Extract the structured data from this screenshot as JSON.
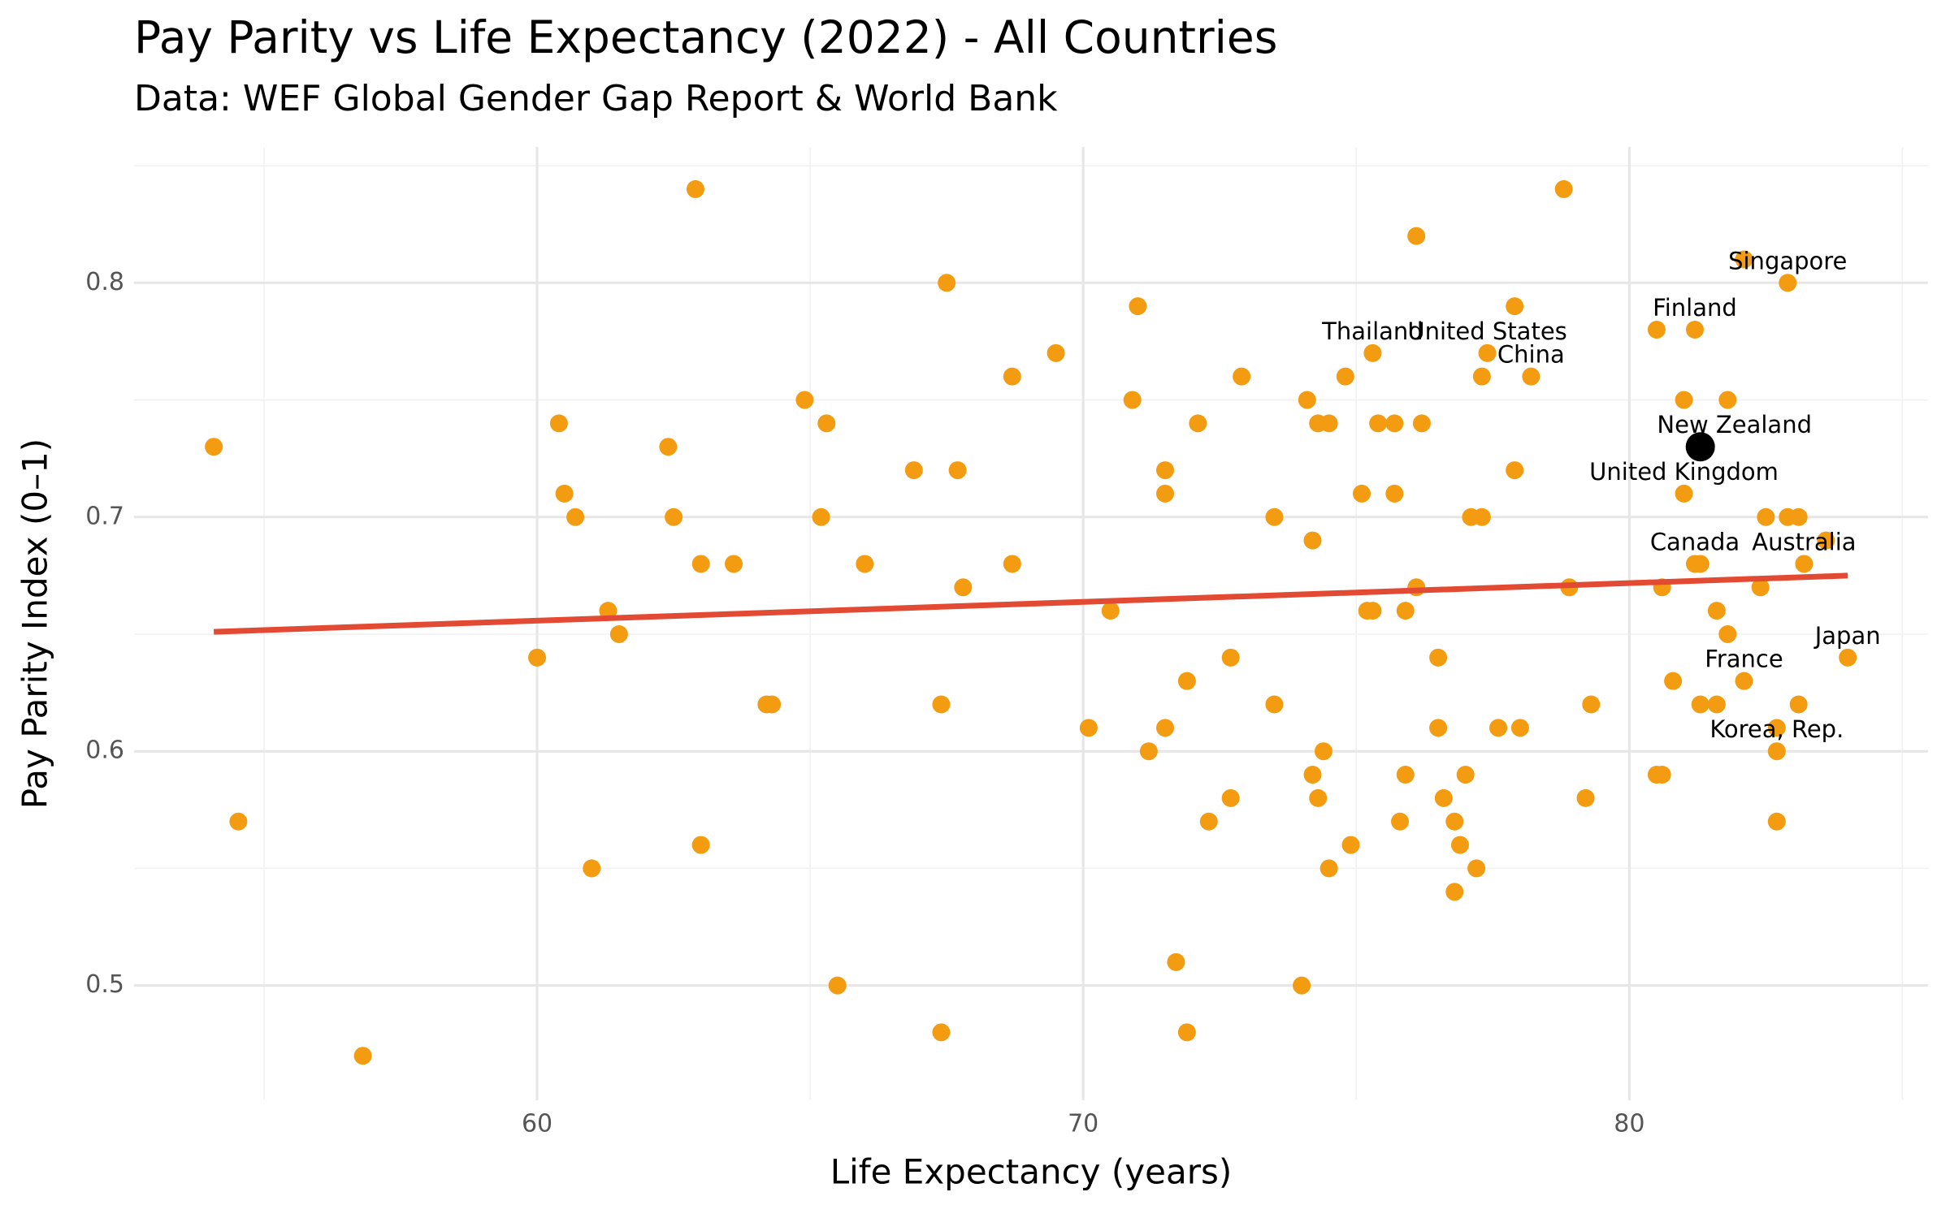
{
  "chart_data": {
    "type": "scatter",
    "title": "Pay Parity vs Life Expectancy (2022) - All Countries",
    "subtitle": "Data: WEF Global Gender Gap Report & World Bank",
    "x_label": "Life Expectancy (years)",
    "y_label": "Pay Parity Index (0–1)",
    "xlim": [
      52.62,
      85.47
    ],
    "ylim": [
      0.451,
      0.858
    ],
    "xticks": [
      60,
      70,
      80
    ],
    "yticks": [
      0.5,
      0.6,
      0.7,
      0.8
    ],
    "xminor": [
      55,
      65,
      75,
      85
    ],
    "yminor": [
      0.55,
      0.65,
      0.75,
      0.85
    ],
    "grid": true,
    "series": [
      {
        "color": "#f39c12",
        "x": [
          54.08,
          54.53,
          56.81,
          60.0,
          60.4,
          60.5,
          60.7,
          61.3,
          61.0,
          61.5,
          62.4,
          62.5,
          62.9,
          63.0,
          63.0,
          63.6,
          64.2,
          64.3,
          64.9,
          65.2,
          65.3,
          65.5,
          66.0,
          66.9,
          67.4,
          67.4,
          67.5,
          67.7,
          67.8,
          68.7,
          68.7,
          69.5,
          70.1,
          70.5,
          70.9,
          71.0,
          71.2,
          71.5,
          71.5,
          71.5,
          71.7,
          71.9,
          71.9,
          72.1,
          72.3,
          72.7,
          72.7,
          72.9,
          73.5,
          73.5,
          74.0,
          74.1,
          74.2,
          74.2,
          74.3,
          74.3,
          74.4,
          74.5,
          74.5,
          74.8,
          74.9,
          75.1,
          75.2,
          75.3,
          75.3,
          75.4,
          75.7,
          75.7,
          75.8,
          75.9,
          75.9,
          76.1,
          76.1,
          76.2,
          76.5,
          76.5,
          76.6,
          76.8,
          76.8,
          76.9,
          77.0,
          77.1,
          77.2,
          77.3,
          77.3,
          77.4,
          77.6,
          77.9,
          77.9,
          78.0,
          78.2,
          78.8,
          78.9,
          79.2,
          79.3,
          80.5,
          80.5,
          80.6,
          80.6,
          80.8,
          81.0,
          81.0,
          81.2,
          81.3,
          81.2,
          81.3,
          81.3,
          81.6,
          81.6,
          81.8,
          81.8,
          82.1,
          82.1,
          82.4,
          82.5,
          82.7,
          82.7,
          82.7,
          82.9,
          82.9,
          83.1,
          83.1,
          83.2,
          83.6,
          84.0
        ],
        "values": [
          0.73,
          0.57,
          0.47,
          0.64,
          0.74,
          0.71,
          0.7,
          0.66,
          0.55,
          0.65,
          0.73,
          0.7,
          0.84,
          0.68,
          0.56,
          0.68,
          0.62,
          0.62,
          0.75,
          0.7,
          0.74,
          0.5,
          0.68,
          0.72,
          0.62,
          0.48,
          0.8,
          0.72,
          0.67,
          0.76,
          0.68,
          0.77,
          0.61,
          0.66,
          0.75,
          0.79,
          0.6,
          0.61,
          0.72,
          0.71,
          0.51,
          0.63,
          0.48,
          0.74,
          0.57,
          0.64,
          0.58,
          0.76,
          0.7,
          0.62,
          0.5,
          0.75,
          0.69,
          0.59,
          0.74,
          0.58,
          0.6,
          0.55,
          0.74,
          0.76,
          0.56,
          0.71,
          0.66,
          0.66,
          0.77,
          0.74,
          0.74,
          0.71,
          0.57,
          0.59,
          0.66,
          0.67,
          0.82,
          0.74,
          0.64,
          0.61,
          0.58,
          0.57,
          0.54,
          0.56,
          0.59,
          0.7,
          0.55,
          0.7,
          0.76,
          0.77,
          0.61,
          0.72,
          0.79,
          0.61,
          0.76,
          0.84,
          0.67,
          0.58,
          0.62,
          0.78,
          0.59,
          0.59,
          0.67,
          0.63,
          0.75,
          0.71,
          0.78,
          0.73,
          0.68,
          0.68,
          0.62,
          0.66,
          0.62,
          0.65,
          0.75,
          0.81,
          0.63,
          0.67,
          0.7,
          0.61,
          0.6,
          0.57,
          0.8,
          0.7,
          0.7,
          0.62,
          0.68,
          0.69,
          0.64
        ]
      }
    ],
    "highlight": {
      "label": "New Zealand",
      "x": 81.3,
      "y": 0.73,
      "color": "#000000"
    },
    "trend": {
      "x": [
        54.08,
        84.0
      ],
      "y": [
        0.651,
        0.675
      ],
      "color": "#e34a33"
    },
    "labels": [
      {
        "text": "Singapore",
        "x": 82.9,
        "y": 0.8
      },
      {
        "text": "Finland",
        "x": 81.2,
        "y": 0.78
      },
      {
        "text": "Thailand",
        "x": 75.3,
        "y": 0.77
      },
      {
        "text": "United States",
        "x": 77.4,
        "y": 0.77
      },
      {
        "text": "China",
        "x": 78.2,
        "y": 0.76
      },
      {
        "text": "United Kingdom",
        "x": 81.0,
        "y": 0.71
      },
      {
        "text": "Canada",
        "x": 81.2,
        "y": 0.68
      },
      {
        "text": "Australia",
        "x": 83.2,
        "y": 0.68
      },
      {
        "text": "Japan",
        "x": 84.0,
        "y": 0.64
      },
      {
        "text": "France",
        "x": 82.1,
        "y": 0.63
      },
      {
        "text": "Korea, Rep.",
        "x": 82.7,
        "y": 0.6
      }
    ]
  }
}
